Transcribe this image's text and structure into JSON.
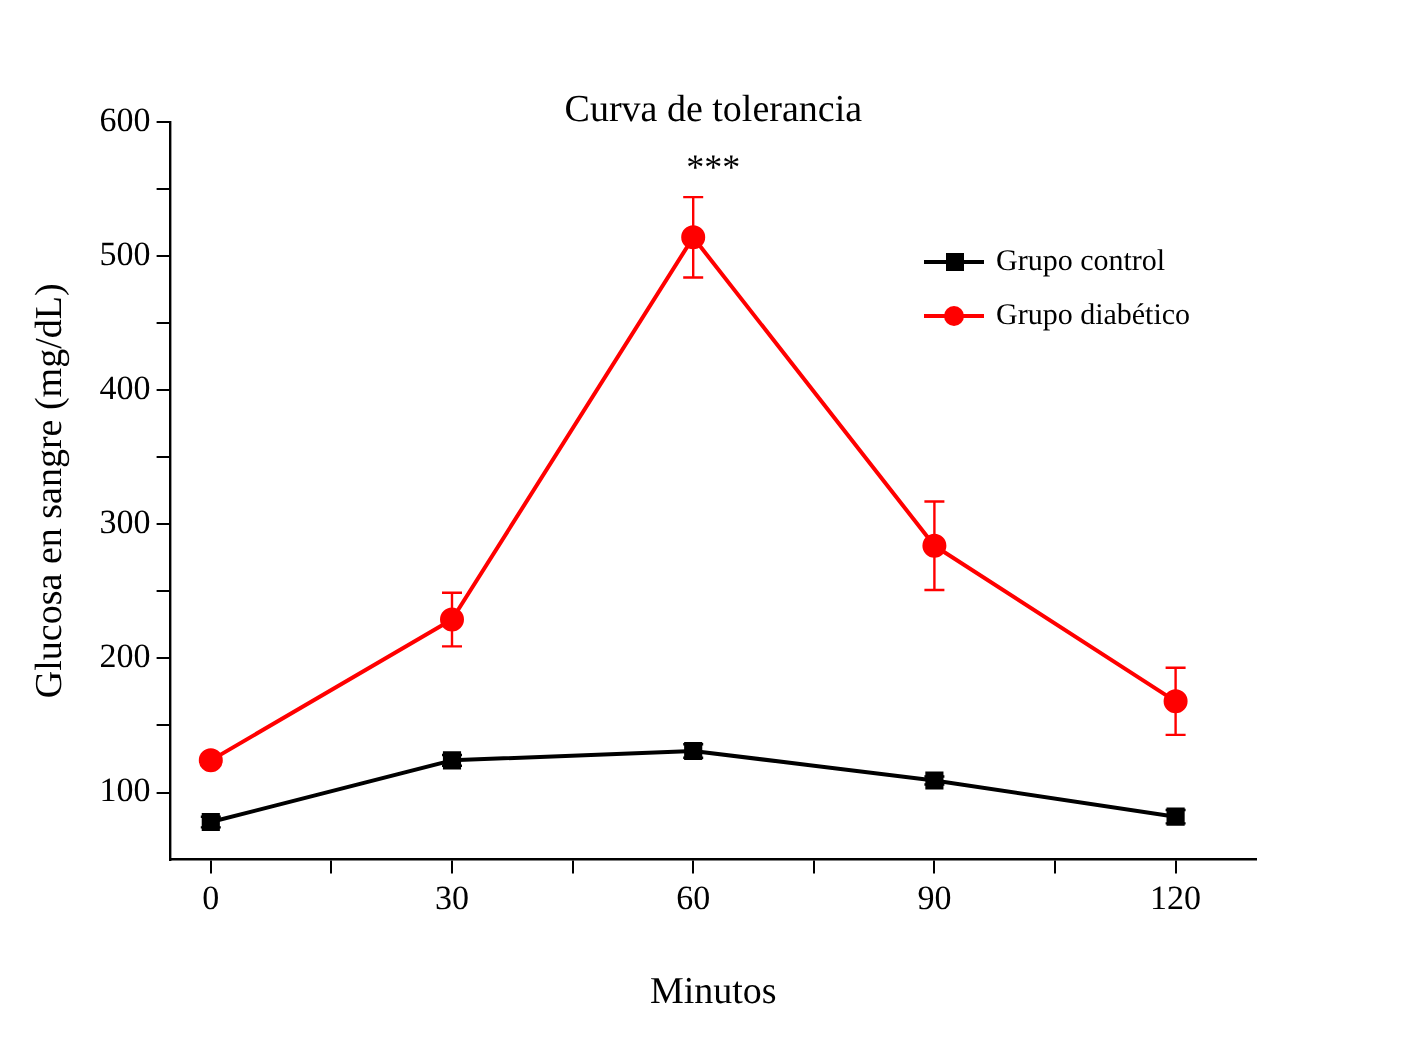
{
  "chart_data": {
    "type": "line",
    "title": "Curva de tolerancia",
    "xlabel": "Minutos",
    "ylabel": "Glucosa en sangre (mg/dL)",
    "x": [
      0,
      30,
      60,
      90,
      120
    ],
    "series": [
      {
        "name": "Grupo control",
        "color": "#000000",
        "marker": "square",
        "values": [
          78,
          124,
          131,
          109,
          82
        ],
        "errors": [
          4,
          4,
          5,
          3,
          5
        ]
      },
      {
        "name": "Grupo diabético",
        "color": "#ff0000",
        "marker": "circle",
        "values": [
          124,
          229,
          514,
          284,
          168
        ],
        "errors": [
          3,
          20,
          30,
          33,
          25
        ]
      }
    ],
    "xlim": [
      -5,
      130
    ],
    "xticks": [
      0,
      {
        "value": 15,
        "label": null
      },
      30,
      {
        "value": 45,
        "label": null
      },
      60,
      {
        "value": 75,
        "label": null
      },
      90,
      {
        "value": 105,
        "label": null
      },
      120
    ],
    "ylim": [
      50,
      600
    ],
    "yticks": [
      100,
      {
        "value": 150,
        "label": null
      },
      200,
      {
        "value": 250,
        "label": null
      },
      300,
      {
        "value": 350,
        "label": null
      },
      400,
      {
        "value": 450,
        "label": null
      },
      500,
      {
        "value": 550,
        "label": null
      },
      600
    ],
    "annotations": [
      "***"
    ],
    "legend": "top right",
    "grid": false,
    "line_style": "solid"
  }
}
